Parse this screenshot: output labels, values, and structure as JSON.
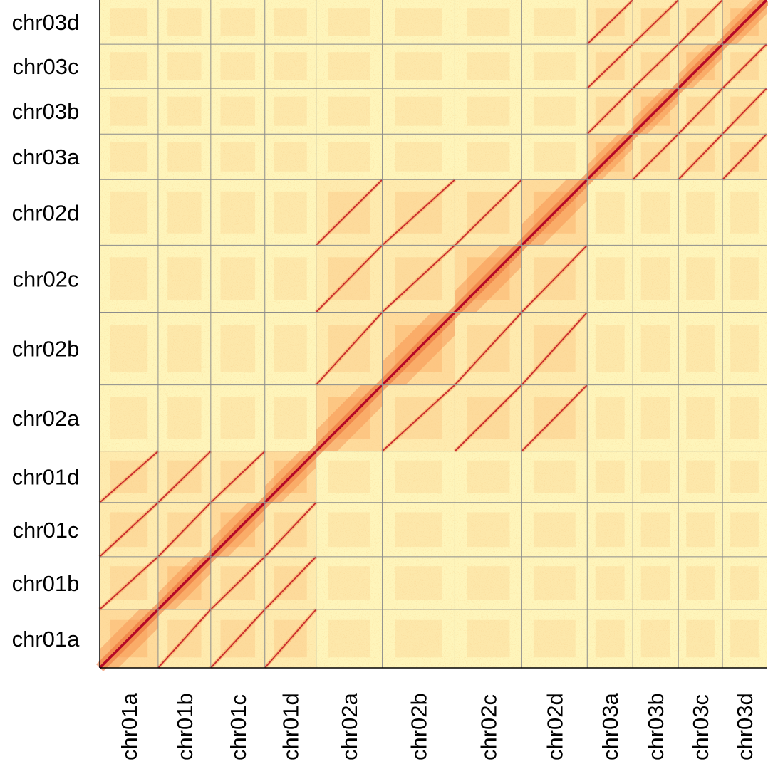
{
  "chart_data": {
    "type": "heatmap",
    "title": "",
    "xlabel": "",
    "ylabel": "",
    "chromosomes": [
      "chr01a",
      "chr01b",
      "chr01c",
      "chr01d",
      "chr02a",
      "chr02b",
      "chr02c",
      "chr02d",
      "chr03a",
      "chr03b",
      "chr03c",
      "chr03d"
    ],
    "x_tick_labels": [
      "chr01a",
      "chr01b",
      "chr01c",
      "chr01d",
      "chr02a",
      "chr02b",
      "chr02c",
      "chr02d",
      "chr03a",
      "chr03b",
      "chr03c",
      "chr03d"
    ],
    "y_tick_labels_bottom_to_top": [
      "chr01a",
      "chr01b",
      "chr01c",
      "chr01d",
      "chr02a",
      "chr02b",
      "chr02c",
      "chr02d",
      "chr03a",
      "chr03b",
      "chr03c",
      "chr03d"
    ],
    "relative_lengths": [
      82,
      74,
      76,
      72,
      93,
      102,
      94,
      92,
      64,
      64,
      62,
      62
    ],
    "homolog_groups": [
      {
        "group": "chr01",
        "members": [
          "chr01a",
          "chr01b",
          "chr01c",
          "chr01d"
        ]
      },
      {
        "group": "chr02",
        "members": [
          "chr02a",
          "chr02b",
          "chr02c",
          "chr02d"
        ]
      },
      {
        "group": "chr03",
        "members": [
          "chr03a",
          "chr03b",
          "chr03c",
          "chr03d"
        ]
      }
    ],
    "intensity_scale": {
      "low_color": "#ffffc8",
      "mid_color": "#fb8a3a",
      "high_color": "#b10026",
      "within_group_offdiagonal_level": 0.45,
      "between_group_level": 0.08
    },
    "grid_color": "#8c8c8c",
    "legend": "none"
  }
}
